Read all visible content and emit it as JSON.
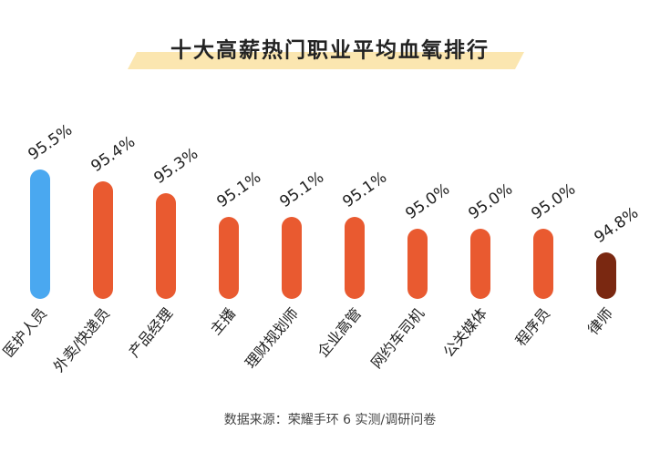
{
  "chart_data": {
    "type": "bar",
    "title": "十大高薪热门职业平均血氧排行",
    "categories": [
      "医护人员",
      "外卖/快递员",
      "产品经理",
      "主播",
      "理财规划师",
      "企业高管",
      "网约车司机",
      "公关媒体",
      "程序员",
      "律师"
    ],
    "values": [
      95.5,
      95.4,
      95.3,
      95.1,
      95.1,
      95.1,
      95.0,
      95.0,
      95.0,
      94.8
    ],
    "value_labels": [
      "95.5%",
      "95.4%",
      "95.3%",
      "95.1%",
      "95.1%",
      "95.1%",
      "95.0%",
      "95.0%",
      "95.0%",
      "94.8%"
    ],
    "colors": [
      "#4aa8f0",
      "#e95a30",
      "#e95a30",
      "#e95a30",
      "#e95a30",
      "#e95a30",
      "#e95a30",
      "#e95a30",
      "#e95a30",
      "#7a2811"
    ],
    "source": "数据来源：荣耀手环 6 实测/调研问卷"
  }
}
